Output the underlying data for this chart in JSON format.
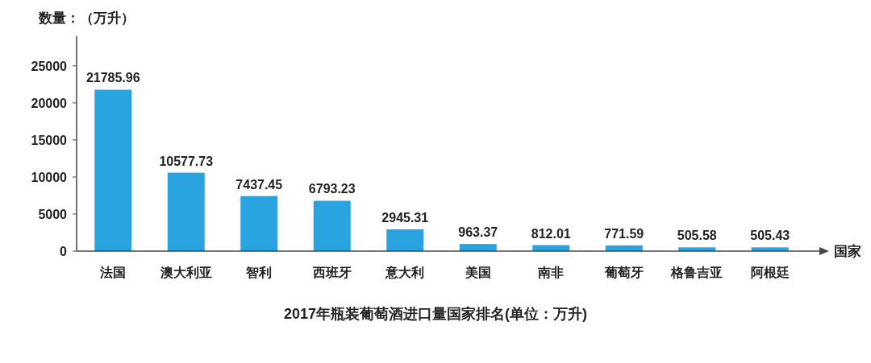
{
  "chart_data": {
    "type": "bar",
    "title": "2017年瓶装葡萄酒进口量国家排名(单位：万升)",
    "xlabel": "国家",
    "ylabel": "数量：（万升）",
    "categories": [
      "法国",
      "澳大利亚",
      "智利",
      "西班牙",
      "意大利",
      "美国",
      "南非",
      "葡萄牙",
      "格鲁吉亚",
      "阿根廷"
    ],
    "values": [
      21785.96,
      10577.73,
      7437.45,
      6793.23,
      2945.31,
      963.37,
      812.01,
      771.59,
      505.58,
      505.43
    ],
    "color": "#29a3df",
    "data_labels": true,
    "ylim": [
      0,
      29000
    ],
    "yticks": [
      0,
      5000,
      10000,
      15000,
      20000,
      25000
    ],
    "grid": false
  }
}
